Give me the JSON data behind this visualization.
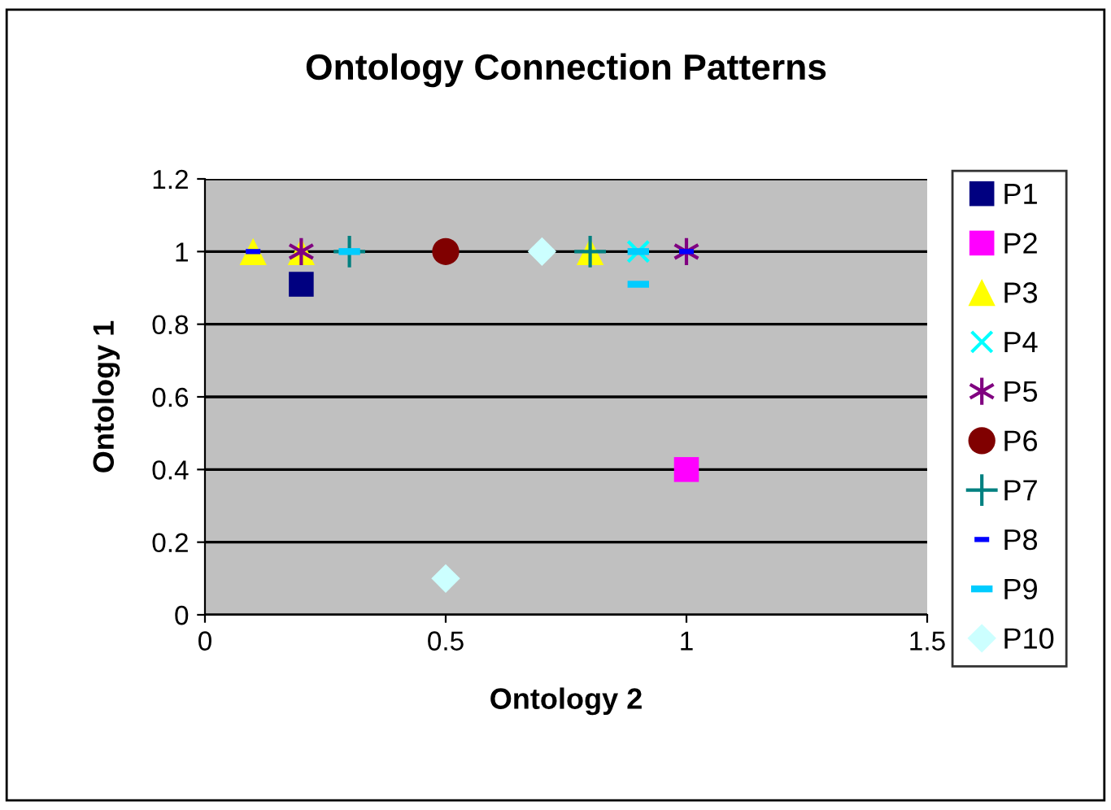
{
  "chart_data": {
    "type": "scatter",
    "title": "Ontology Connection Patterns",
    "xlabel": "Ontology 2",
    "ylabel": "Ontology 1",
    "xlim": [
      0,
      1.5
    ],
    "xticks": [
      0,
      0.5,
      1,
      1.5
    ],
    "ylim": [
      0,
      1.2
    ],
    "yticks": [
      0,
      0.2,
      0.4,
      0.6,
      0.8,
      1,
      1.2
    ],
    "grid": "y",
    "legend": "right",
    "series": [
      {
        "name": "P1",
        "color": "#000080",
        "marker": "square",
        "x": [
          0.2
        ],
        "values": [
          0.91
        ]
      },
      {
        "name": "P2",
        "color": "#ff00ff",
        "marker": "square",
        "x": [
          1.0
        ],
        "values": [
          0.4
        ]
      },
      {
        "name": "P3",
        "color": "#ffff00",
        "marker": "triangle",
        "x": [
          0.1,
          0.2,
          0.8
        ],
        "values": [
          1,
          1,
          1
        ]
      },
      {
        "name": "P4",
        "color": "#00ffff",
        "x": [
          0.9
        ],
        "values": [
          1
        ]
      },
      {
        "name": "P5",
        "color": "#800080",
        "x": [
          0.2,
          1.0
        ],
        "values": [
          1,
          1
        ]
      },
      {
        "name": "P6",
        "color": "#800000",
        "marker": "circle",
        "x": [
          0.5
        ],
        "values": [
          1
        ]
      },
      {
        "name": "P7",
        "color": "#008080",
        "x": [
          0.3,
          0.8
        ],
        "values": [
          1,
          1
        ]
      },
      {
        "name": "P8",
        "color": "#0000ff",
        "x": [
          0.1,
          1.0
        ],
        "values": [
          1,
          1
        ]
      },
      {
        "name": "P9",
        "color": "#00ccff",
        "x": [
          0.3,
          0.9,
          0.9
        ],
        "values": [
          1,
          1,
          0.91
        ]
      },
      {
        "name": "P10",
        "color": "#ccffff",
        "marker": "diamond",
        "x": [
          0.5,
          0.7
        ],
        "values": [
          0.1,
          1
        ]
      }
    ]
  }
}
